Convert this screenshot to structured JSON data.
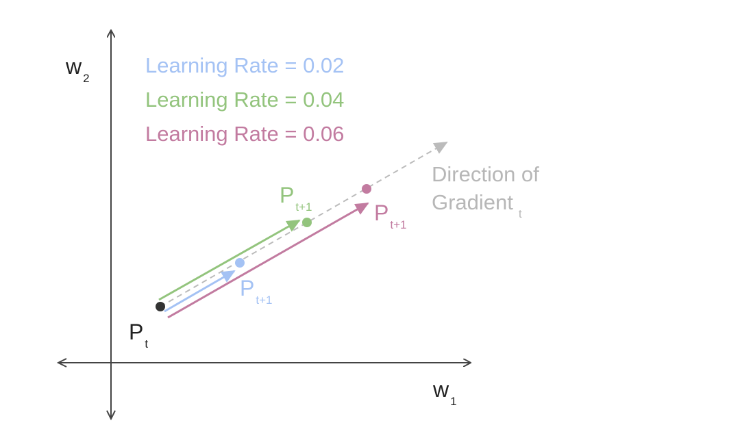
{
  "axes": {
    "x_label": {
      "base": "w",
      "sub": "1"
    },
    "y_label": {
      "base": "w",
      "sub": "2"
    }
  },
  "legend": [
    "Learning Rate = 0.02",
    "Learning Rate = 0.04",
    "Learning Rate = 0.06"
  ],
  "points": {
    "start": {
      "base": "P",
      "sub": "t"
    },
    "blue": {
      "base": "P",
      "sub": "t+1"
    },
    "green": {
      "base": "P",
      "sub": "t+1"
    },
    "pink": {
      "base": "P",
      "sub": "t+1"
    }
  },
  "gradient": {
    "line1": "Direction of",
    "line2": "Gradient",
    "sub": "t"
  }
}
